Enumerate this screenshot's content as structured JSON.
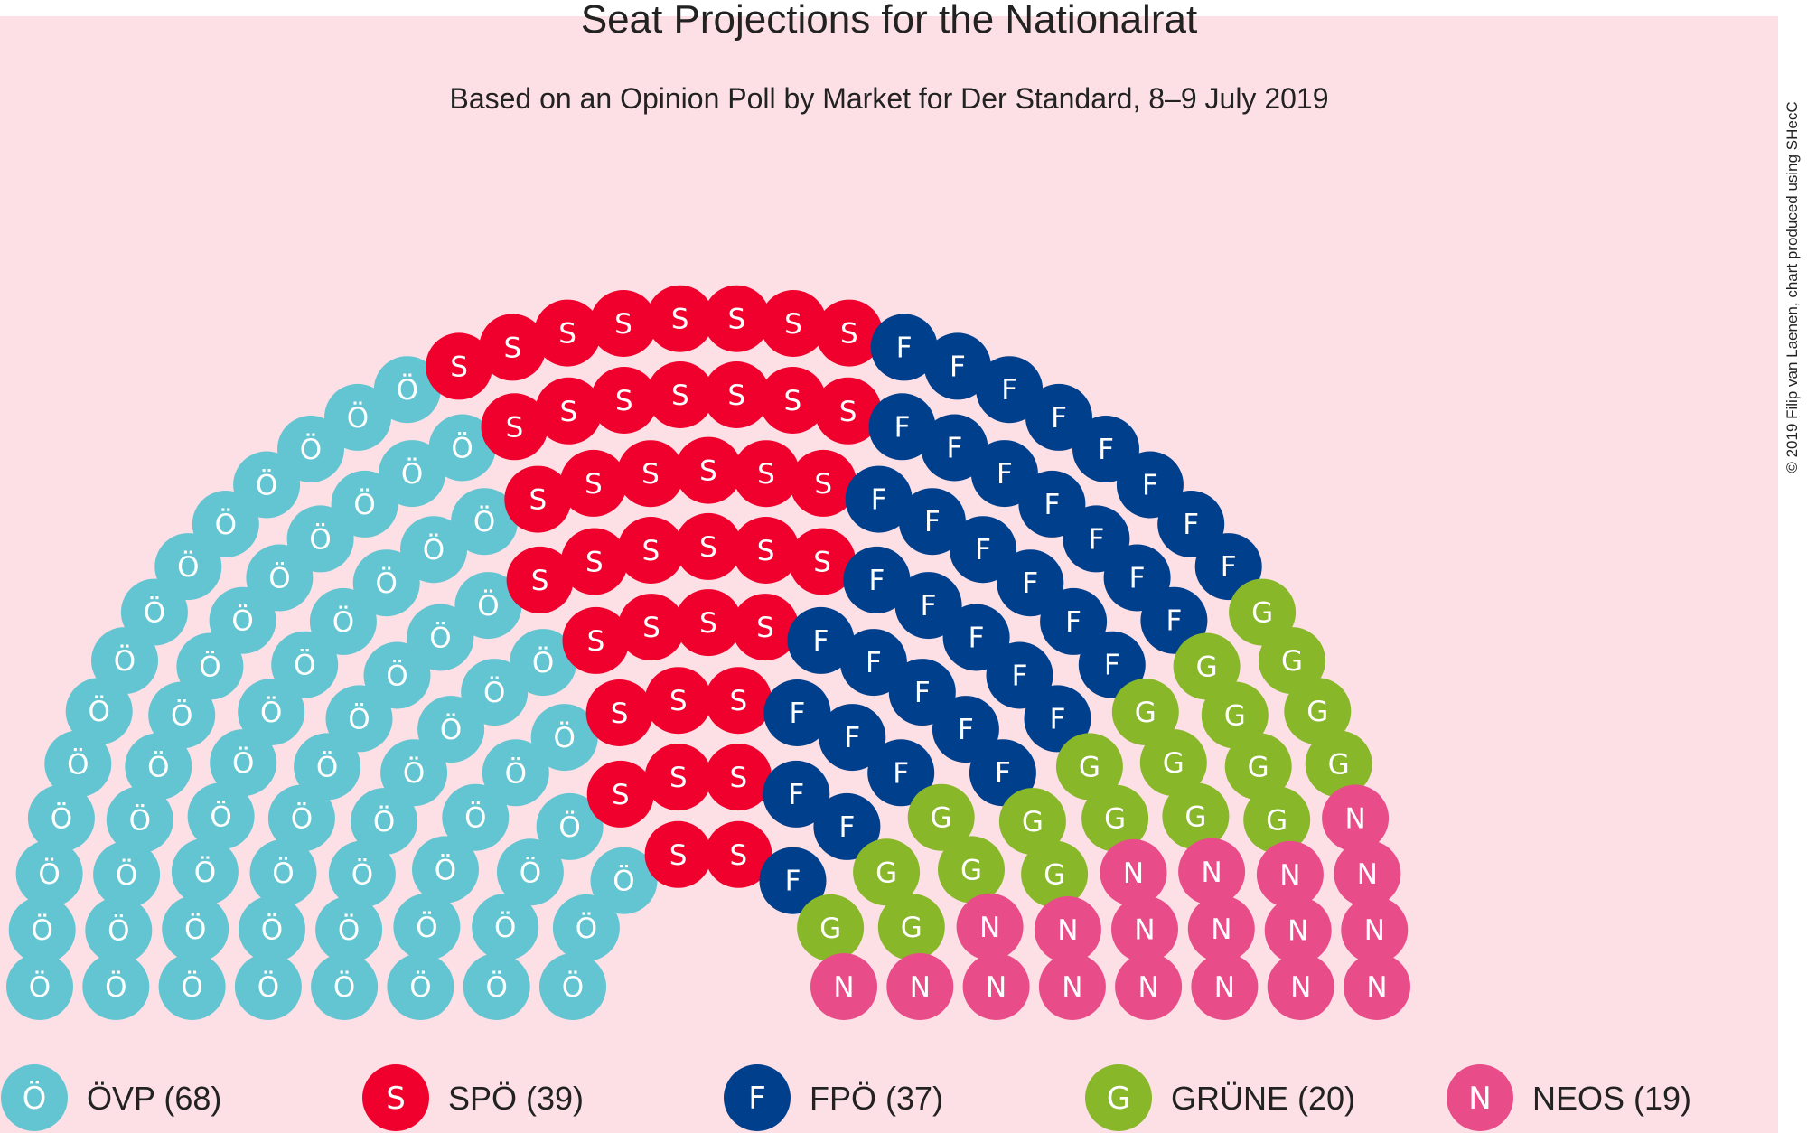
{
  "chart_data": {
    "type": "parliament",
    "title": "Seat Projections for the Nationalrat",
    "subtitle": "Based on an Opinion Poll by Market for Der Standard, 8–9 July 2019",
    "credit": "© 2019 Filip van Laenen, chart produced using SHecC",
    "total_seats": 183,
    "parties": [
      {
        "abbr": "Ö",
        "name": "ÖVP",
        "seats": 68,
        "color": "#63c5d1",
        "legend": "ÖVP (68)"
      },
      {
        "abbr": "S",
        "name": "SPÖ",
        "seats": 39,
        "color": "#f0002c",
        "legend": "SPÖ (39)"
      },
      {
        "abbr": "F",
        "name": "FPÖ",
        "seats": 37,
        "color": "#003f8c",
        "legend": "FPÖ (37)"
      },
      {
        "abbr": "G",
        "name": "GRÜNE",
        "seats": 20,
        "color": "#88b72a",
        "legend": "GRÜNE (20)"
      },
      {
        "abbr": "N",
        "name": "NEOS",
        "seats": 19,
        "color": "#e84d8a",
        "legend": "NEOS (19)"
      }
    ]
  }
}
